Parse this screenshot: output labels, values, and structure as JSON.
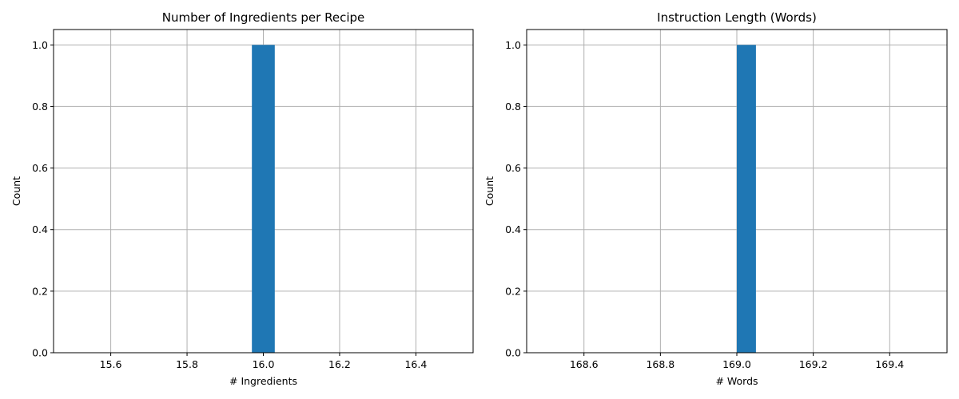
{
  "chart_data": [
    {
      "type": "bar",
      "title": "Number of Ingredients per Recipe",
      "xlabel": "# Ingredients",
      "ylabel": "Count",
      "xlim": [
        15.45,
        16.55
      ],
      "ylim": [
        0,
        1.05
      ],
      "xticks": [
        "15.6",
        "15.8",
        "16.0",
        "16.2",
        "16.4"
      ],
      "xtick_values": [
        15.6,
        15.8,
        16.0,
        16.2,
        16.4
      ],
      "yticks": [
        "0.0",
        "0.2",
        "0.4",
        "0.6",
        "0.8",
        "1.0"
      ],
      "ytick_values": [
        0,
        0.2,
        0.4,
        0.6,
        0.8,
        1.0
      ],
      "grid": true,
      "bars": [
        {
          "x_start": 15.97,
          "x_end": 16.03,
          "value": 1
        }
      ],
      "color": "#1f77b4"
    },
    {
      "type": "bar",
      "title": "Instruction Length (Words)",
      "xlabel": "# Words",
      "ylabel": "Count",
      "xlim": [
        168.45,
        169.55
      ],
      "ylim": [
        0,
        1.05
      ],
      "xticks": [
        "168.6",
        "168.8",
        "169.0",
        "169.2",
        "169.4"
      ],
      "xtick_values": [
        168.6,
        168.8,
        169.0,
        169.2,
        169.4
      ],
      "yticks": [
        "0.0",
        "0.2",
        "0.4",
        "0.6",
        "0.8",
        "1.0"
      ],
      "ytick_values": [
        0,
        0.2,
        0.4,
        0.6,
        0.8,
        1.0
      ],
      "grid": true,
      "bars": [
        {
          "x_start": 169.0,
          "x_end": 169.05,
          "value": 1
        }
      ],
      "color": "#1f77b4"
    }
  ]
}
